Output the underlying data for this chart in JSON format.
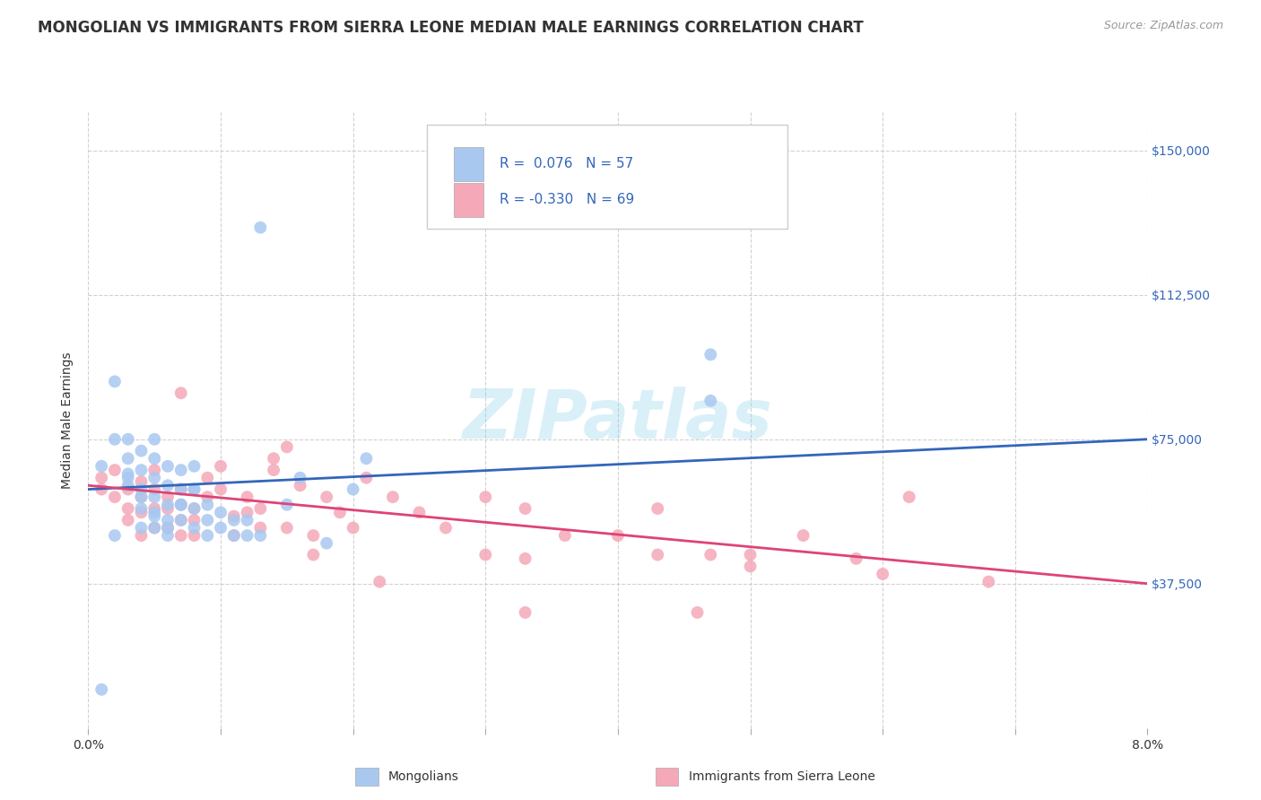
{
  "title": "MONGOLIAN VS IMMIGRANTS FROM SIERRA LEONE MEDIAN MALE EARNINGS CORRELATION CHART",
  "source": "Source: ZipAtlas.com",
  "ylabel": "Median Male Earnings",
  "yticks": [
    0,
    37500,
    75000,
    112500,
    150000
  ],
  "ytick_labels": [
    "",
    "$37,500",
    "$75,000",
    "$112,500",
    "$150,000"
  ],
  "xlim": [
    0.0,
    0.08
  ],
  "ylim": [
    0,
    160000
  ],
  "legend_label_blue": "Mongolians",
  "legend_label_pink": "Immigrants from Sierra Leone",
  "color_blue": "#A8C8F0",
  "color_pink": "#F5A8B8",
  "color_blue_line": "#3366BB",
  "color_pink_line": "#DD4477",
  "color_text_blue": "#3366BB",
  "color_text_dark": "#333333",
  "color_grid": "#CCCCCC",
  "color_source": "#999999",
  "background_color": "#FFFFFF",
  "title_fontsize": 12,
  "source_fontsize": 9,
  "axis_label_fontsize": 10,
  "tick_fontsize": 10,
  "legend_fontsize": 11,
  "watermark_text": "ZIPatlas",
  "blue_line_y0": 62000,
  "blue_line_y1": 75000,
  "pink_line_y0": 63000,
  "pink_line_y1": 37500,
  "blue_x": [
    0.001,
    0.002,
    0.002,
    0.003,
    0.003,
    0.003,
    0.003,
    0.004,
    0.004,
    0.004,
    0.004,
    0.004,
    0.005,
    0.005,
    0.005,
    0.005,
    0.005,
    0.005,
    0.006,
    0.006,
    0.006,
    0.006,
    0.006,
    0.007,
    0.007,
    0.007,
    0.007,
    0.008,
    0.008,
    0.008,
    0.008,
    0.009,
    0.009,
    0.009,
    0.01,
    0.01,
    0.011,
    0.011,
    0.012,
    0.012,
    0.013,
    0.015,
    0.016,
    0.018,
    0.02,
    0.021,
    0.047,
    0.047,
    0.013,
    0.001,
    0.002,
    0.003,
    0.004,
    0.005,
    0.006,
    0.007,
    0.008
  ],
  "blue_y": [
    68000,
    90000,
    75000,
    63000,
    66000,
    70000,
    75000,
    57000,
    62000,
    67000,
    72000,
    52000,
    52000,
    56000,
    60000,
    65000,
    70000,
    75000,
    50000,
    54000,
    58000,
    63000,
    68000,
    54000,
    58000,
    62000,
    67000,
    52000,
    57000,
    62000,
    68000,
    50000,
    54000,
    58000,
    52000,
    56000,
    50000,
    54000,
    50000,
    54000,
    130000,
    58000,
    65000,
    48000,
    62000,
    70000,
    97000,
    85000,
    50000,
    10000,
    50000,
    65000,
    60000,
    55000,
    52000,
    58000,
    62000
  ],
  "pink_x": [
    0.001,
    0.001,
    0.002,
    0.002,
    0.003,
    0.003,
    0.003,
    0.004,
    0.004,
    0.004,
    0.004,
    0.005,
    0.005,
    0.005,
    0.005,
    0.006,
    0.006,
    0.006,
    0.007,
    0.007,
    0.007,
    0.007,
    0.007,
    0.008,
    0.008,
    0.008,
    0.009,
    0.009,
    0.01,
    0.01,
    0.011,
    0.011,
    0.012,
    0.012,
    0.013,
    0.013,
    0.014,
    0.014,
    0.015,
    0.015,
    0.016,
    0.017,
    0.018,
    0.019,
    0.02,
    0.021,
    0.023,
    0.025,
    0.027,
    0.03,
    0.033,
    0.036,
    0.04,
    0.043,
    0.047,
    0.05,
    0.054,
    0.058,
    0.062,
    0.033,
    0.022,
    0.017,
    0.043,
    0.05,
    0.033,
    0.046,
    0.03,
    0.06,
    0.068
  ],
  "pink_y": [
    65000,
    62000,
    67000,
    60000,
    62000,
    57000,
    54000,
    50000,
    64000,
    60000,
    56000,
    52000,
    67000,
    62000,
    57000,
    60000,
    57000,
    52000,
    62000,
    58000,
    54000,
    50000,
    87000,
    57000,
    54000,
    50000,
    65000,
    60000,
    68000,
    62000,
    55000,
    50000,
    60000,
    56000,
    57000,
    52000,
    70000,
    67000,
    73000,
    52000,
    63000,
    50000,
    60000,
    56000,
    52000,
    65000,
    60000,
    56000,
    52000,
    60000,
    57000,
    50000,
    50000,
    57000,
    45000,
    45000,
    50000,
    44000,
    60000,
    44000,
    38000,
    45000,
    45000,
    42000,
    30000,
    30000,
    45000,
    40000,
    38000
  ]
}
